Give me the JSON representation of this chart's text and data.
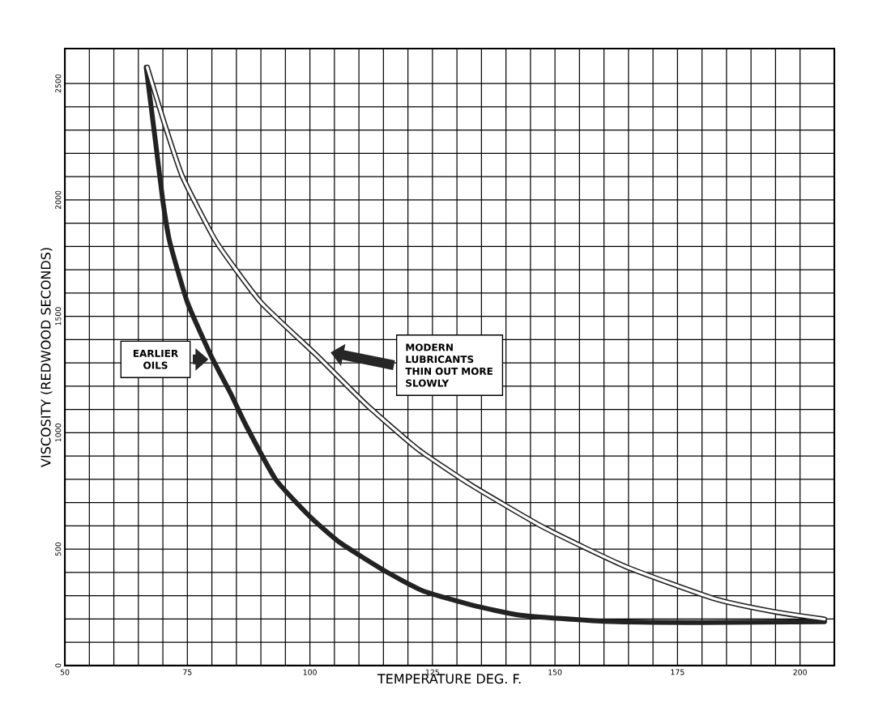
{
  "chart_data": {
    "type": "line",
    "xlabel": "TEMPERATURE DEG. F.",
    "ylabel": "VISCOSITY (REDWOOD SECONDS)",
    "xlim": [
      50,
      207
    ],
    "ylim": [
      0,
      2650
    ],
    "xticks": [
      50,
      75,
      100,
      125,
      150,
      175,
      200
    ],
    "yticks": [
      0,
      500,
      1000,
      1500,
      2000,
      2500
    ],
    "grid": true,
    "series": [
      {
        "color": "#222222",
        "x": [
          66.6,
          68.5,
          70,
          71.4,
          75,
          79.8,
          83.8,
          87,
          93,
          100,
          106,
          115,
          123,
          133,
          143,
          160,
          180,
          205
        ],
        "values": [
          2570,
          2250,
          1995,
          1820,
          1560,
          1332,
          1170,
          1030,
          800,
          640,
          530,
          410,
          321,
          260,
          216,
          190,
          185,
          188
        ]
      },
      {
        "color": "#222222",
        "x": [
          66.8,
          70,
          74,
          80.9,
          90,
          101.4,
          111.4,
          122,
          133,
          148,
          164.4,
          182.7,
          195,
          205
        ],
        "values": [
          2570,
          2350,
          2100,
          1820,
          1560,
          1332,
          1123,
          930,
          774,
          590,
          425,
          286,
          230,
          199
        ]
      }
    ],
    "annotations": [
      "EARLIER OILS",
      "MODERN LUBRICANTS THIN OUT MORE SLOWLY"
    ]
  }
}
